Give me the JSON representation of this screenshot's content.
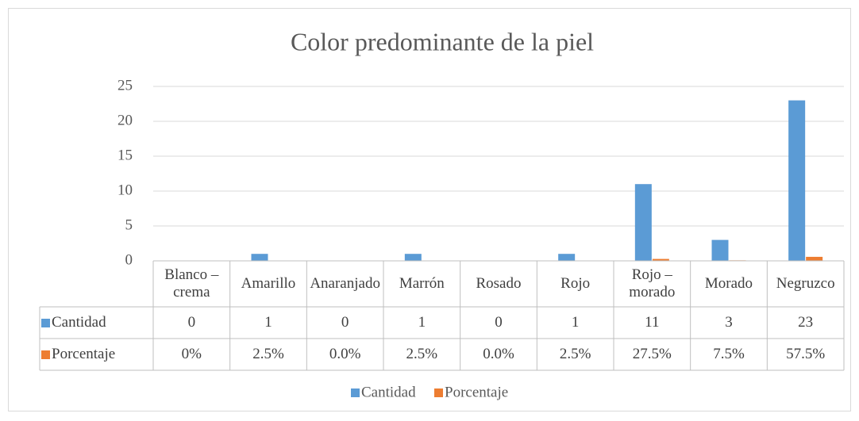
{
  "chart_data": {
    "type": "bar",
    "title": "Color predominante de la piel",
    "categories": [
      "Blanco – crema",
      "Amarillo",
      "Anaranjado",
      "Marrón",
      "Rosado",
      "Rojo",
      "Rojo – morado",
      "Morado",
      "Negruzco"
    ],
    "series": [
      {
        "name": "Cantidad",
        "color": "#5b9bd5",
        "values": [
          0,
          1,
          0,
          1,
          0,
          1,
          11,
          3,
          23
        ]
      },
      {
        "name": "Porcentaje",
        "color": "#ed7d31",
        "values": [
          0,
          0.025,
          0,
          0.025,
          0,
          0.025,
          0.275,
          0.075,
          0.575
        ],
        "value_labels": [
          "0%",
          "2.5%",
          "0.0%",
          "2.5%",
          "0.0%",
          "2.5%",
          "27.5%",
          "7.5%",
          "57.5%"
        ]
      }
    ],
    "ylim": [
      0,
      25
    ],
    "yticks": [
      0,
      5,
      10,
      15,
      20,
      25
    ],
    "grid": true,
    "legend": "bottom",
    "data_table": true
  }
}
